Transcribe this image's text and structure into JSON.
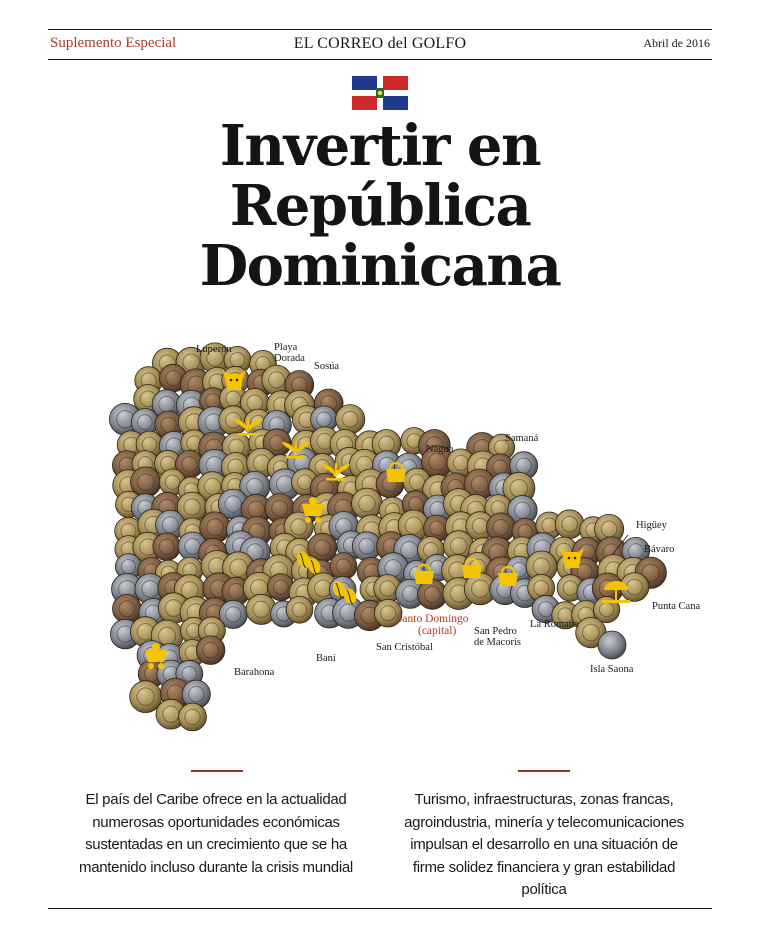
{
  "header": {
    "section": "Suplemento Especial",
    "publication": "EL CORREO del GOLFO",
    "date": "Abril de 2016"
  },
  "title_lines": [
    "Invertir en",
    "República",
    "Dominicana"
  ],
  "map": {
    "places": {
      "luperon": "Luperón",
      "playa_dorada_1": "Playa",
      "playa_dorada_2": "Dorada",
      "sosua": "Sosúa",
      "nagua": "Nagua",
      "samana": "Samaná",
      "higuey": "Higüey",
      "bavaro": "Bávaro",
      "punta_cana": "Punta Cana",
      "la_romana": "La Romana",
      "isla_saona": "Isla Saona",
      "san_pedro_1": "San Pedro",
      "san_pedro_2": "de Macorís",
      "santo_domingo_1": "Santo Domingo",
      "santo_domingo_2": "(capital)",
      "san_cristobal": "San Cristóbal",
      "bani": "Baní",
      "barahona": "Barahona"
    },
    "colors": {
      "coin_gold": "#a9925a",
      "coin_silver": "#8a8f98",
      "icon": "#f5c400",
      "capital": "#b33a2a"
    },
    "icons": [
      "cow-icon",
      "crop-icon",
      "crop-icon",
      "crop-icon",
      "crop-icon",
      "mine-cart-icon",
      "basket-icon",
      "coffee-beans-icon",
      "coffee-beans-icon",
      "basket-icon",
      "basket-icon",
      "basket-icon",
      "cow-icon",
      "beach-umbrella-icon",
      "mine-cart-icon"
    ]
  },
  "columns": {
    "left": "El país del Caribe ofrece en la actualidad numerosas oportunidades económicas sustentadas en un crecimiento que se ha mantenido incluso durante la crisis mundial",
    "right": "Turismo, infraestructuras, zonas francas, agroindustria, minería y telecomunicaciones impulsan el desarrollo en una situación de firme solidez financiera y gran estabilidad política"
  }
}
